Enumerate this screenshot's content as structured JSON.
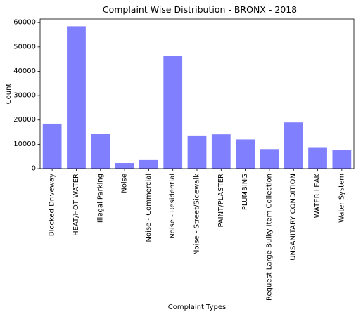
{
  "chart_data": {
    "type": "bar",
    "title": "Complaint Wise Distribution - BRONX - 2018",
    "xlabel": "Complaint Types",
    "ylabel": "Count",
    "categories": [
      "Blocked Driveway",
      "HEAT/HOT WATER",
      "Illegal Parking",
      "Noise",
      "Noise - Commercial",
      "Noise - Residential",
      "Noise - Street/Sidewalk",
      "PAINT/PLASTER",
      "PLUMBING",
      "Request Large Bulky Item Collection",
      "UNSANITARY CONDITION",
      "WATER LEAK",
      "Water System"
    ],
    "values": [
      18500,
      58500,
      14200,
      2300,
      3500,
      46200,
      13600,
      14100,
      12000,
      8000,
      19000,
      8800,
      7500
    ],
    "ylim": [
      0,
      61500
    ],
    "yticks": [
      0,
      10000,
      20000,
      30000,
      40000,
      50000,
      60000
    ],
    "bar_color": "#8080ff",
    "grid": false
  }
}
